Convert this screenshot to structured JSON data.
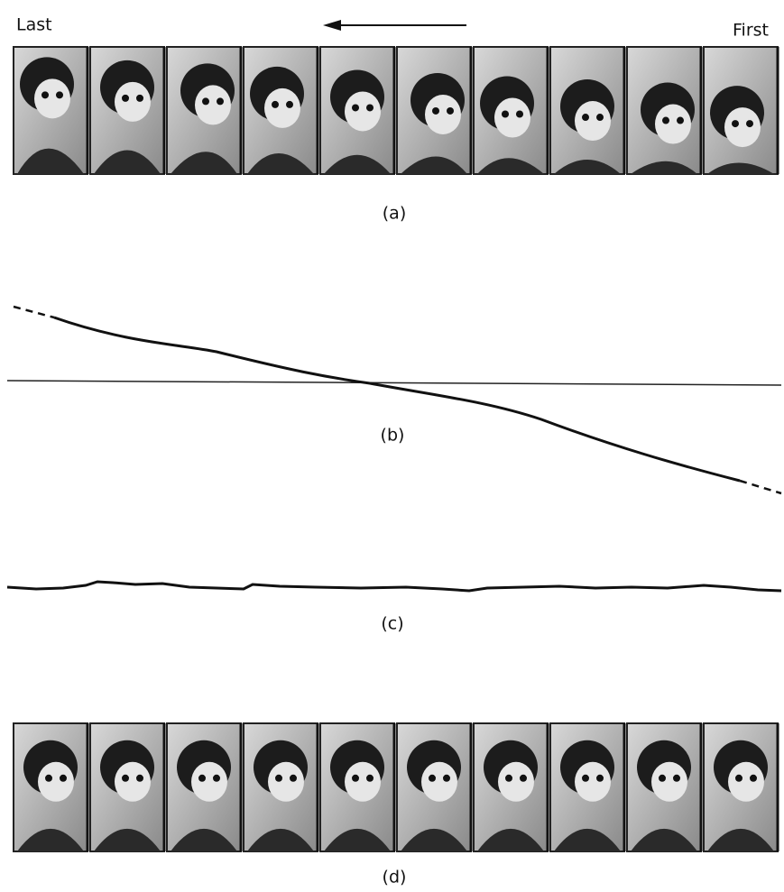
{
  "header": {
    "left_label": "Last",
    "right_label": "First"
  },
  "panels": [
    {
      "label": "(a)"
    },
    {
      "label": "(b)"
    },
    {
      "label": "(c)"
    },
    {
      "label": "(d)"
    }
  ]
}
